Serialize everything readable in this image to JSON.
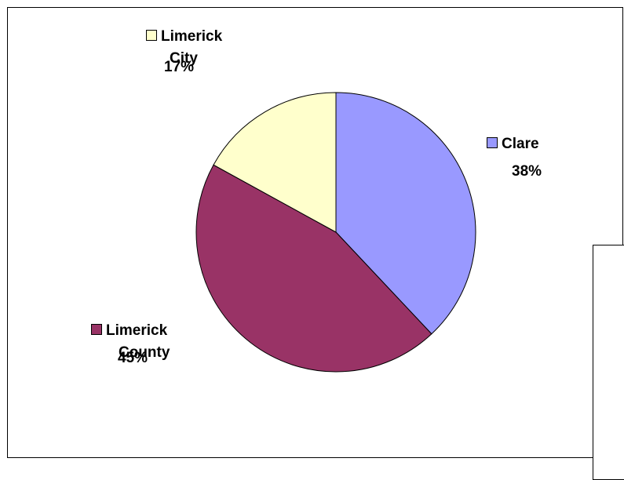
{
  "chart_data": {
    "type": "pie",
    "slices": [
      {
        "label": "Clare",
        "value": 38,
        "percent_label": "38%",
        "color": "#9999FF"
      },
      {
        "label": "Limerick County",
        "value": 45,
        "percent_label": "45%",
        "color": "#993366"
      },
      {
        "label": "Limerick City",
        "value": 17,
        "percent_label": "17%",
        "color": "#FFFFCC"
      }
    ],
    "start_angle_deg": 0,
    "direction": "clockwise",
    "legend": "none",
    "labels": "outside, category name and percent"
  }
}
